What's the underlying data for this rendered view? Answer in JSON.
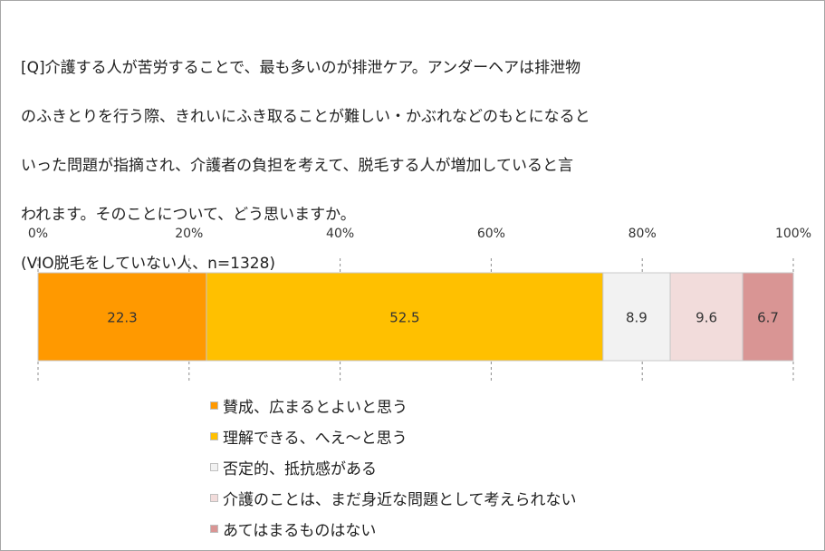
{
  "question": {
    "lines": [
      "[Q]介護する人が苦労することで、最も多いのが排泄ケア。アンダーヘアは排泄物",
      "のふきとりを行う際、きれいにふき取ることが難しい・かぶれなどのもとになると",
      "いった問題が指摘され、介護者の負担を考えて、脱毛する人が増加していると言",
      "われます。そのことについて、どう思いますか。",
      "(VIO脱毛をしていない人、n=1328)"
    ]
  },
  "chart_data": {
    "type": "bar",
    "orientation": "horizontal",
    "stacked": true,
    "percent_axis": true,
    "xlim": [
      0,
      100
    ],
    "x_ticks": [
      "0%",
      "20%",
      "40%",
      "60%",
      "80%",
      "100%"
    ],
    "grid": "dashed vertical",
    "legend_position": "bottom",
    "series": [
      {
        "name": "賛成、広まるとよいと思う",
        "value": 22.3,
        "label": "22.3",
        "color": "#ff9900"
      },
      {
        "name": "理解できる、へえ〜と思う",
        "value": 52.5,
        "label": "52.5",
        "color": "#ffc000"
      },
      {
        "name": "否定的、抵抗感がある",
        "value": 8.9,
        "label": "8.9",
        "color": "#f2f2f2"
      },
      {
        "name": "介護のことは、まだ身近な問題として考えられない",
        "value": 9.6,
        "label": "9.6",
        "color": "#f2dcdb"
      },
      {
        "name": "あてはまるものはない",
        "value": 6.7,
        "label": "6.7",
        "color": "#d99594"
      }
    ]
  }
}
